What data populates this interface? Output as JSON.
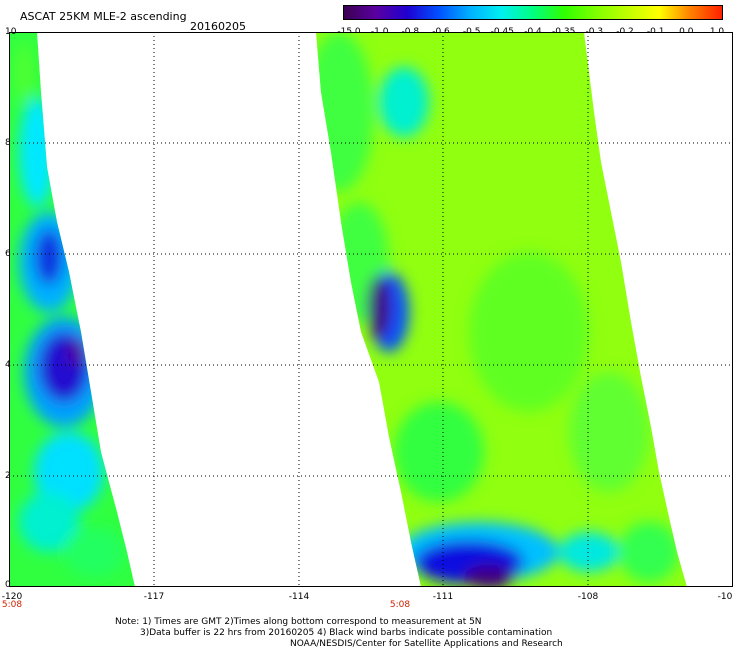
{
  "title": "ASCAT 25KM MLE-2 ascending",
  "date": "20160205",
  "colorbar": {
    "labels": [
      "-15.0",
      "-1.0",
      "-0.8",
      "-0.6",
      "-0.5",
      "-0.45",
      "-0.4",
      "-0.35",
      "-0.3",
      "-0.2",
      "-0.1",
      "0.0",
      "1.0"
    ],
    "colors": [
      "#3a0050",
      "#5a00a0",
      "#2000d0",
      "#0050ff",
      "#00b0ff",
      "#00f0f0",
      "#00ff80",
      "#30ff00",
      "#80ff00",
      "#c0ff00",
      "#ffff00",
      "#ff8000",
      "#ff2000"
    ]
  },
  "y_axis": {
    "ticks": [
      "10",
      "8",
      "6",
      "4",
      "2",
      "0"
    ]
  },
  "x_axis": {
    "ticks": [
      "-120",
      "-117",
      "-114",
      "-111",
      "-108",
      "-10"
    ]
  },
  "times": [
    "5:08",
    "5:08"
  ],
  "notes": [
    "Note: 1) Times are GMT 2)Times along bottom correspond to measurement at 5N",
    "3)Data buffer is 22 hrs from 20160205 4) Black wind barbs indicate possible contamination",
    "NOAA/NESDIS/Center for Satellite Applications and Research"
  ]
}
